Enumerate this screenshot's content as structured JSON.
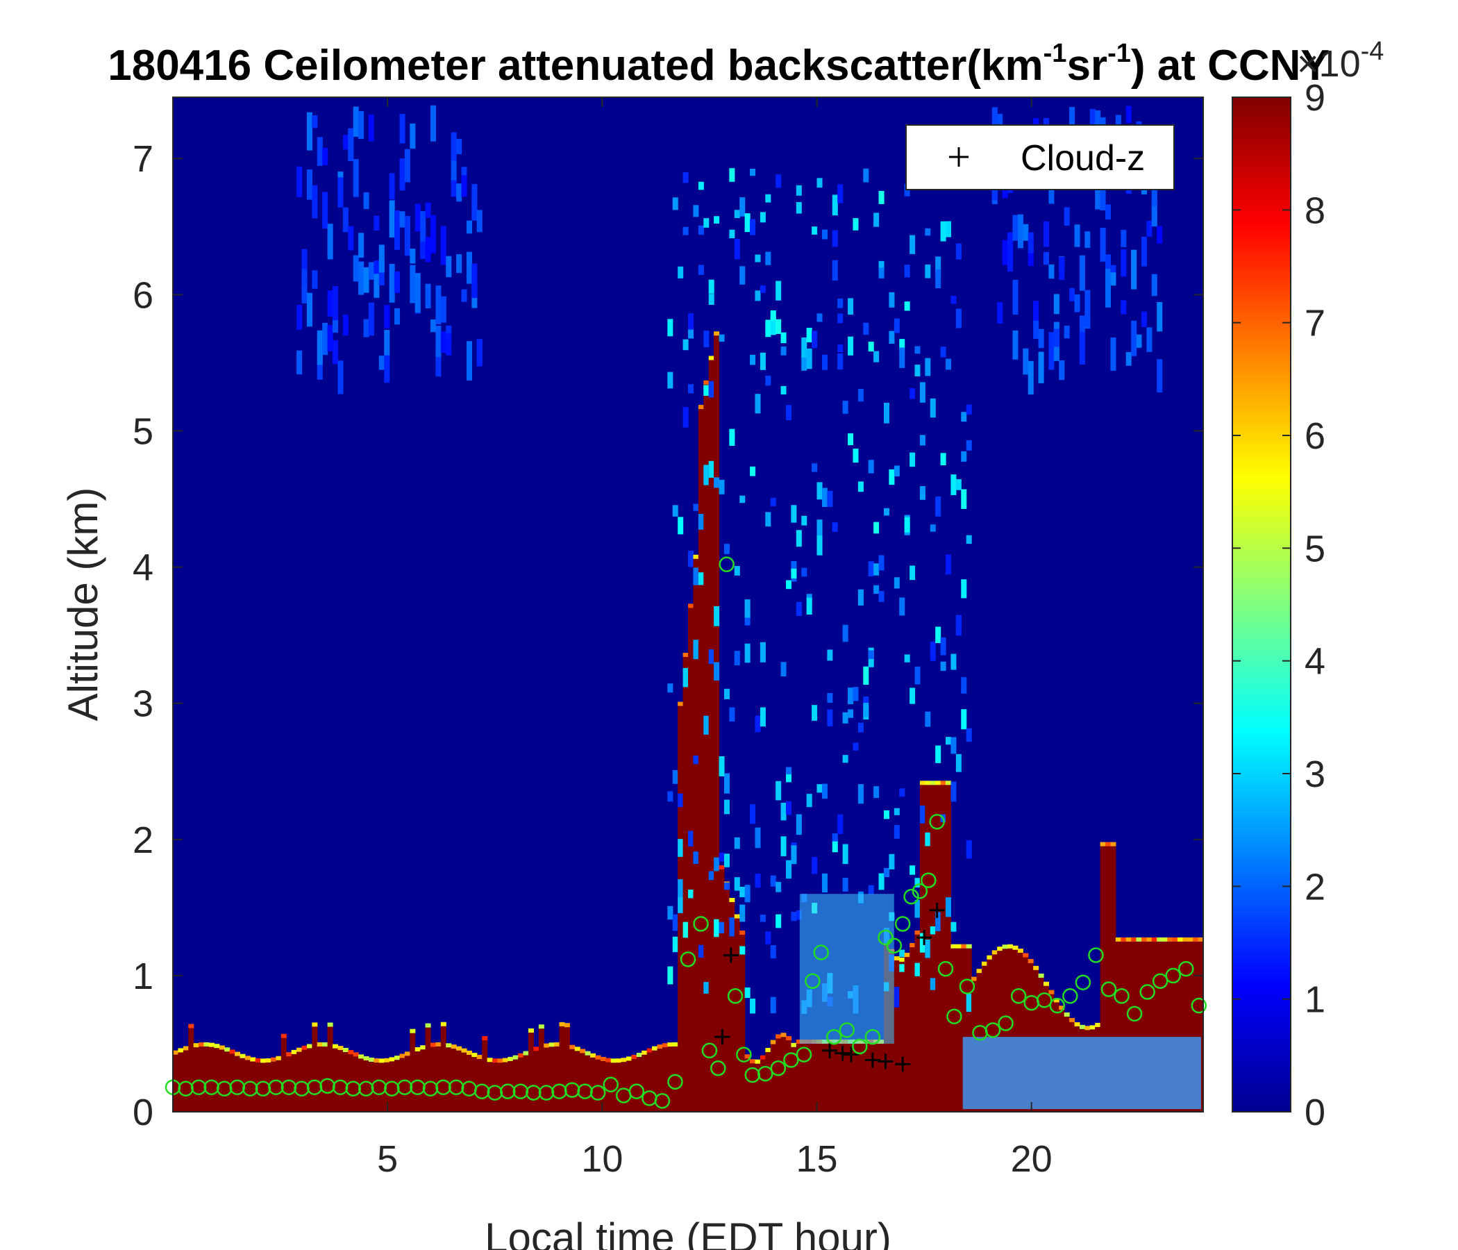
{
  "chart_data": {
    "type": "heatmap",
    "title_main": "180416 Ceilometer attenuated backscatter(km",
    "title_sup1": "-1",
    "title_mid": "sr",
    "title_sup2": "-1",
    "title_end": ") at CCNY",
    "xlabel": "Local time (EDT hour)",
    "ylabel": "Altitude (km)",
    "xlim": [
      0,
      24
    ],
    "ylim": [
      0,
      7.45
    ],
    "x_ticks": [
      5,
      10,
      15,
      20
    ],
    "y_ticks": [
      0,
      1,
      2,
      3,
      4,
      5,
      6,
      7
    ],
    "colorbar": {
      "colormap": "jet",
      "range": [
        0,
        9
      ],
      "ticks": [
        0,
        1,
        2,
        3,
        4,
        5,
        6,
        7,
        8,
        9
      ],
      "exponent_label": "×10",
      "exponent_value": "-4"
    },
    "legend": {
      "location": "top-right",
      "entry": "Cloud-z",
      "marker": "+"
    },
    "series": [
      {
        "name": "Cloud-z",
        "marker": "plus",
        "color": "#000000",
        "x": [
          12.8,
          13.0,
          15.3,
          15.6,
          15.8,
          16.3,
          16.6,
          17.0,
          17.5,
          17.8
        ],
        "y": [
          0.55,
          1.15,
          0.45,
          0.43,
          0.42,
          0.38,
          0.37,
          0.35,
          1.28,
          1.48
        ]
      },
      {
        "marker": "circle",
        "color": "#22dd22",
        "x": [
          0.0,
          0.3,
          0.6,
          0.9,
          1.2,
          1.5,
          1.8,
          2.1,
          2.4,
          2.7,
          3.0,
          3.3,
          3.6,
          3.9,
          4.2,
          4.5,
          4.8,
          5.1,
          5.4,
          5.7,
          6.0,
          6.3,
          6.6,
          6.9,
          7.2,
          7.5,
          7.8,
          8.1,
          8.4,
          8.7,
          9.0,
          9.3,
          9.6,
          9.9,
          10.2,
          10.5,
          10.8,
          11.1,
          11.4,
          11.7,
          12.0,
          12.3,
          12.5,
          12.7,
          12.9,
          13.1,
          13.3,
          13.5,
          13.8,
          14.1,
          14.4,
          14.7,
          14.9,
          15.1,
          15.4,
          15.7,
          16.0,
          16.3,
          16.6,
          16.8,
          17.0,
          17.2,
          17.4,
          17.6,
          17.8,
          18.0,
          18.2,
          18.5,
          18.8,
          19.1,
          19.4,
          19.7,
          20.0,
          20.3,
          20.6,
          20.9,
          21.2,
          21.5,
          21.8,
          22.1,
          22.4,
          22.7,
          23.0,
          23.3,
          23.6,
          23.9
        ],
        "y": [
          0.18,
          0.17,
          0.18,
          0.18,
          0.17,
          0.18,
          0.17,
          0.17,
          0.18,
          0.18,
          0.17,
          0.18,
          0.19,
          0.18,
          0.17,
          0.17,
          0.18,
          0.17,
          0.18,
          0.18,
          0.17,
          0.18,
          0.18,
          0.17,
          0.15,
          0.14,
          0.15,
          0.15,
          0.14,
          0.14,
          0.15,
          0.16,
          0.15,
          0.14,
          0.2,
          0.12,
          0.15,
          0.1,
          0.08,
          0.22,
          1.12,
          1.38,
          0.45,
          0.32,
          4.02,
          0.85,
          0.42,
          0.27,
          0.28,
          0.32,
          0.38,
          0.42,
          0.96,
          1.17,
          0.55,
          0.6,
          0.48,
          0.55,
          1.28,
          1.22,
          1.38,
          1.58,
          1.62,
          1.7,
          2.13,
          1.05,
          0.7,
          0.92,
          0.58,
          0.6,
          0.65,
          0.85,
          0.8,
          0.82,
          0.78,
          0.85,
          0.95,
          1.15,
          0.9,
          0.85,
          0.72,
          0.88,
          0.96,
          1.0,
          1.05,
          0.78
        ]
      }
    ]
  }
}
